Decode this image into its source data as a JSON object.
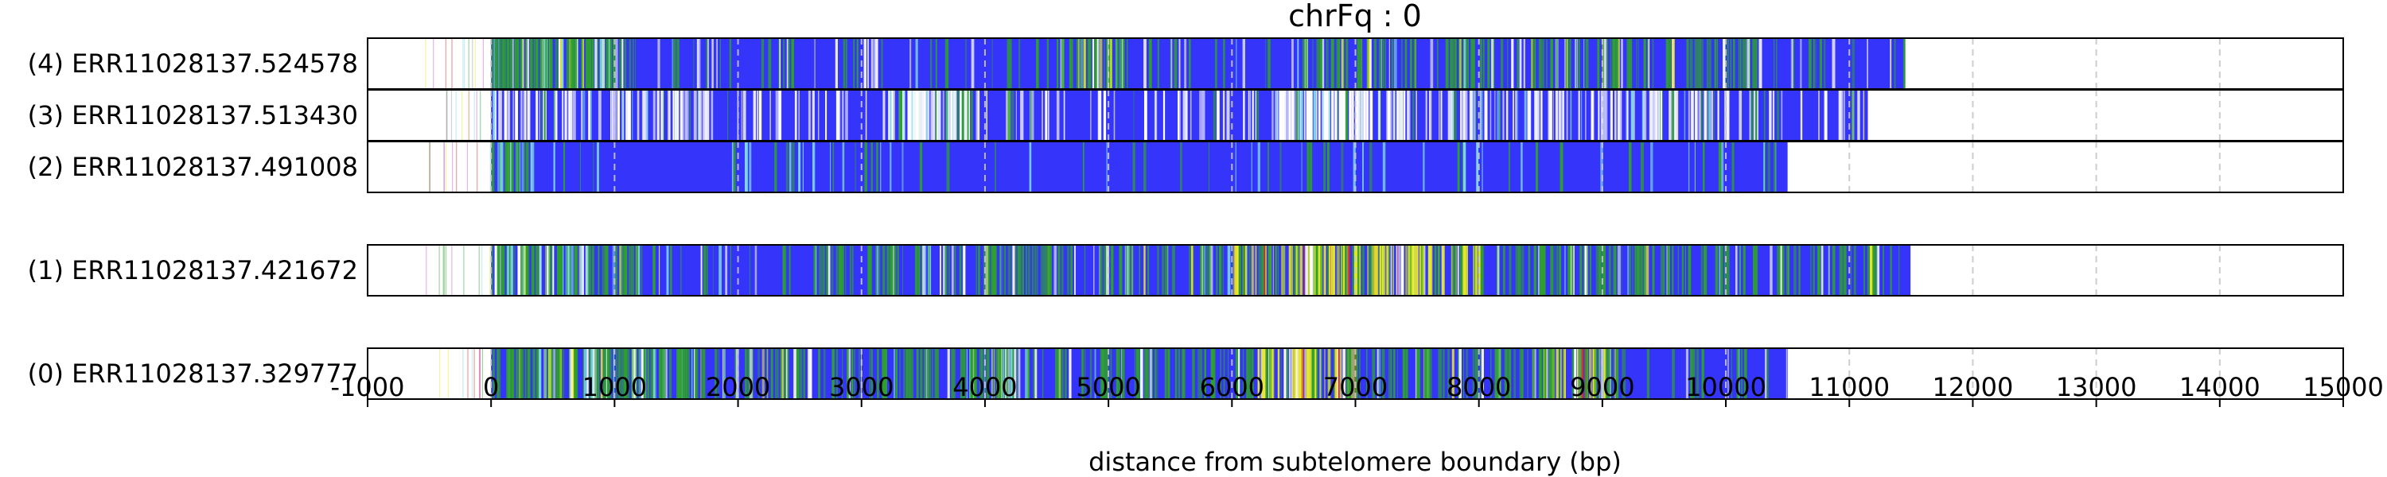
{
  "chart_data": {
    "type": "heatmap",
    "title": "chrFq : 0",
    "xlabel": "distance from subtelomere boundary (bp)",
    "ylabel": "",
    "xlim": [
      -1000,
      15000
    ],
    "xticks": [
      -1000,
      0,
      1000,
      2000,
      3000,
      4000,
      5000,
      6000,
      7000,
      8000,
      9000,
      10000,
      11000,
      12000,
      13000,
      14000,
      15000
    ],
    "grid": "vertical dashed lines at each 1000 bp",
    "colors": {
      "base": "#3434fa",
      "green": "#2ea02e",
      "yellow": "#e8e82a",
      "white": "#ffffff",
      "cyan": "#7fd6e6",
      "red": "#d62728",
      "magenta": "#c85ac8",
      "grid": "#c8c8c8"
    },
    "series": [
      {
        "name": "(4) ERR11028137.524578",
        "start": 0,
        "end": 11450,
        "bands": [
          {
            "from": 0,
            "to": 1100,
            "pattern": "blue-green-dense"
          },
          {
            "from": 1100,
            "to": 4700,
            "pattern": "blue-green-sparse"
          },
          {
            "from": 4700,
            "to": 5150,
            "pattern": "blue-green-dense"
          },
          {
            "from": 5150,
            "to": 6600,
            "pattern": "blue-green-sparse"
          },
          {
            "from": 6600,
            "to": 7500,
            "pattern": "blue-green-medium"
          },
          {
            "from": 7500,
            "to": 7750,
            "pattern": "blue-green-sparse"
          },
          {
            "from": 7750,
            "to": 10200,
            "pattern": "blue-green-medium"
          },
          {
            "from": 10200,
            "to": 11450,
            "pattern": "blue-green-sparse"
          }
        ]
      },
      {
        "name": "(3) ERR11028137.513430",
        "start": 0,
        "end": 11150,
        "bands": [
          {
            "from": 0,
            "to": 1600,
            "pattern": "blue-white-medium"
          },
          {
            "from": 1600,
            "to": 3200,
            "pattern": "blue-white-sparse"
          },
          {
            "from": 3200,
            "to": 3900,
            "pattern": "blue-white-dense"
          },
          {
            "from": 3900,
            "to": 6300,
            "pattern": "blue-white-sparse"
          },
          {
            "from": 6300,
            "to": 7200,
            "pattern": "blue-white-dense"
          },
          {
            "from": 7200,
            "to": 10000,
            "pattern": "blue-white-medium"
          },
          {
            "from": 10000,
            "to": 11150,
            "pattern": "blue-white-sparse"
          }
        ]
      },
      {
        "name": "(2) ERR11028137.491008",
        "start": 0,
        "end": 10500,
        "bands": [
          {
            "from": 0,
            "to": 300,
            "pattern": "blue-green-dense"
          },
          {
            "from": 300,
            "to": 10500,
            "pattern": "blue-green-faint"
          }
        ]
      },
      {
        "name": "(1) ERR11028137.421672",
        "start": 0,
        "end": 11500,
        "bands": [
          {
            "from": 0,
            "to": 1200,
            "pattern": "blue-green-dense"
          },
          {
            "from": 1200,
            "to": 2650,
            "pattern": "blue-green-sparse"
          },
          {
            "from": 2650,
            "to": 6000,
            "pattern": "blue-green-medium"
          },
          {
            "from": 6000,
            "to": 7400,
            "pattern": "yellow-green-dense"
          },
          {
            "from": 7400,
            "to": 8000,
            "pattern": "yellow-green-dense"
          },
          {
            "from": 8000,
            "to": 11300,
            "pattern": "blue-green-medium"
          },
          {
            "from": 11300,
            "to": 11500,
            "pattern": "blue-green-sparse"
          }
        ]
      },
      {
        "name": "(0) ERR11028137.329777",
        "start": 0,
        "end": 10500,
        "bands": [
          {
            "from": 0,
            "to": 1600,
            "pattern": "blue-green-dense"
          },
          {
            "from": 1600,
            "to": 3800,
            "pattern": "blue-green-medium"
          },
          {
            "from": 3800,
            "to": 4400,
            "pattern": "blue-green-dense"
          },
          {
            "from": 4400,
            "to": 6200,
            "pattern": "blue-green-medium"
          },
          {
            "from": 6200,
            "to": 7000,
            "pattern": "yellow-green-dense"
          },
          {
            "from": 7000,
            "to": 8500,
            "pattern": "blue-green-medium"
          },
          {
            "from": 8500,
            "to": 9100,
            "pattern": "yellow-green-dense"
          },
          {
            "from": 9100,
            "to": 10500,
            "pattern": "blue-green-sparse"
          }
        ]
      }
    ],
    "pre_boundary_ticks": "sparse faint colored vertical lines between -550 and 0 bp in every row"
  }
}
